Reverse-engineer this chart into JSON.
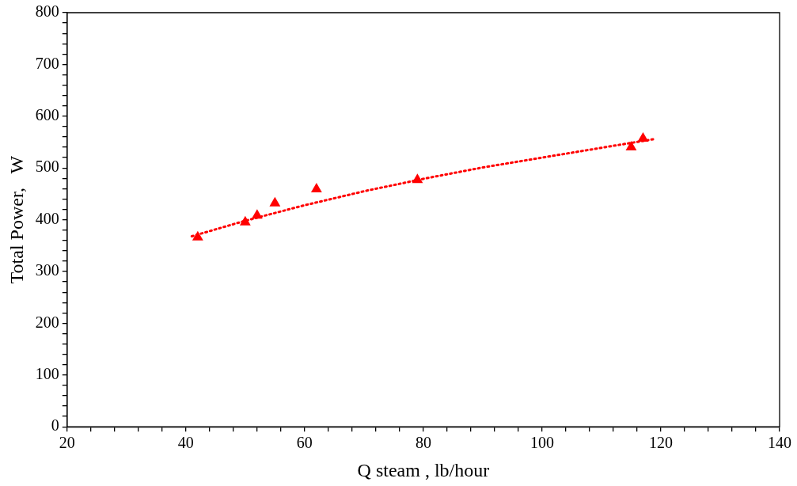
{
  "chart_data": {
    "type": "scatter",
    "xlabel": "Q steam , lb/hour",
    "ylabel": "Total Power,   W",
    "xlim": [
      20,
      140
    ],
    "ylim": [
      0,
      800
    ],
    "xticks": [
      20,
      {
        "value": 24,
        "label": null
      },
      {
        "value": 28,
        "label": null
      },
      {
        "value": 32,
        "label": null
      },
      {
        "value": 36,
        "label": null
      },
      40,
      {
        "value": 44,
        "label": null
      },
      {
        "value": 48,
        "label": null
      },
      {
        "value": 52,
        "label": null
      },
      {
        "value": 56,
        "label": null
      },
      60,
      {
        "value": 64,
        "label": null
      },
      {
        "value": 68,
        "label": null
      },
      {
        "value": 72,
        "label": null
      },
      {
        "value": 76,
        "label": null
      },
      80,
      {
        "value": 84,
        "label": null
      },
      {
        "value": 88,
        "label": null
      },
      {
        "value": 92,
        "label": null
      },
      {
        "value": 96,
        "label": null
      },
      100,
      {
        "value": 104,
        "label": null
      },
      {
        "value": 108,
        "label": null
      },
      {
        "value": 112,
        "label": null
      },
      {
        "value": 116,
        "label": null
      },
      120,
      {
        "value": 124,
        "label": null
      },
      {
        "value": 128,
        "label": null
      },
      {
        "value": 132,
        "label": null
      },
      {
        "value": 136,
        "label": null
      },
      140
    ],
    "yticks": [
      0,
      {
        "value": 20,
        "label": null
      },
      {
        "value": 40,
        "label": null
      },
      {
        "value": 60,
        "label": null
      },
      {
        "value": 80,
        "label": null
      },
      100,
      {
        "value": 120,
        "label": null
      },
      {
        "value": 140,
        "label": null
      },
      {
        "value": 160,
        "label": null
      },
      {
        "value": 180,
        "label": null
      },
      200,
      {
        "value": 220,
        "label": null
      },
      {
        "value": 240,
        "label": null
      },
      {
        "value": 260,
        "label": null
      },
      {
        "value": 280,
        "label": null
      },
      300,
      {
        "value": 320,
        "label": null
      },
      {
        "value": 340,
        "label": null
      },
      {
        "value": 360,
        "label": null
      },
      {
        "value": 380,
        "label": null
      },
      400,
      {
        "value": 420,
        "label": null
      },
      {
        "value": 440,
        "label": null
      },
      {
        "value": 460,
        "label": null
      },
      {
        "value": 480,
        "label": null
      },
      500,
      {
        "value": 520,
        "label": null
      },
      {
        "value": 540,
        "label": null
      },
      {
        "value": 560,
        "label": null
      },
      {
        "value": 580,
        "label": null
      },
      600,
      {
        "value": 620,
        "label": null
      },
      {
        "value": 640,
        "label": null
      },
      {
        "value": 660,
        "label": null
      },
      {
        "value": 680,
        "label": null
      },
      700,
      {
        "value": 720,
        "label": null
      },
      {
        "value": 740,
        "label": null
      },
      {
        "value": 760,
        "label": null
      },
      {
        "value": 780,
        "label": null
      },
      800
    ],
    "grid": false,
    "legend": false,
    "series": [
      {
        "marker": "triangle",
        "color": "#ff0000",
        "x": [
          42,
          50,
          52,
          55,
          62,
          79,
          115,
          117
        ],
        "values": [
          366,
          395,
          408,
          432,
          459,
          477,
          540,
          557
        ]
      },
      {
        "type": "line",
        "marker": "none",
        "line_style": "dotted",
        "color": "#ff0000",
        "x": [
          41,
          50,
          60,
          70,
          80,
          90,
          100,
          110,
          119
        ],
        "values": [
          368,
          398,
          428,
          455,
          479,
          501,
          520,
          539,
          556
        ]
      }
    ]
  }
}
